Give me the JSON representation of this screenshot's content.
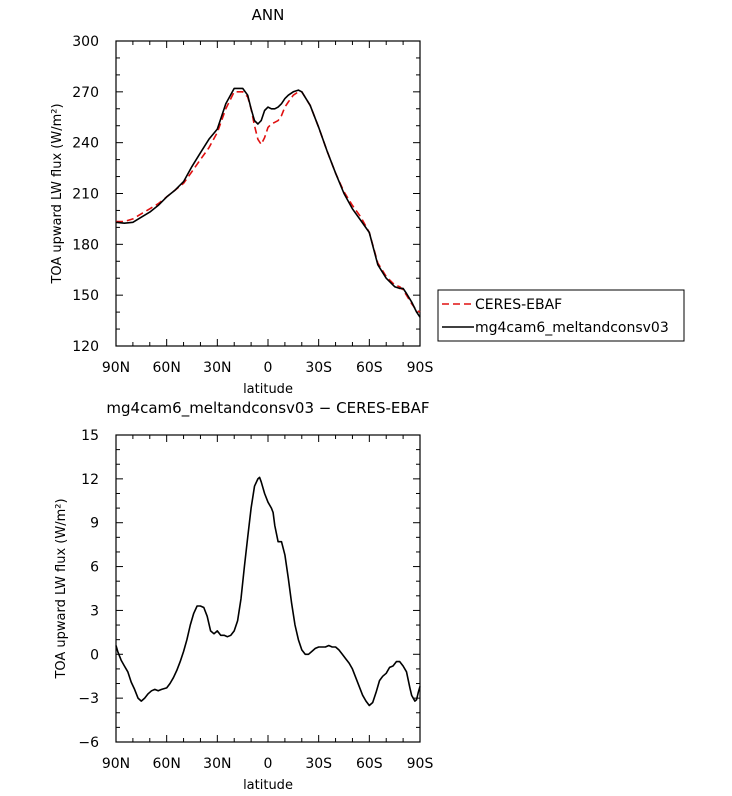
{
  "chart_data": [
    {
      "type": "line",
      "title": "ANN",
      "xlabel": "latitude",
      "ylabel": "TOA upward LW flux (W/m²)",
      "xlim": [
        90,
        -90
      ],
      "ylim": [
        120,
        300
      ],
      "xticks": [
        90,
        60,
        30,
        0,
        -30,
        -60,
        -90
      ],
      "xticklabels": [
        "90N",
        "60N",
        "30N",
        "0",
        "30S",
        "60S",
        "90S"
      ],
      "yticks": [
        120,
        150,
        180,
        210,
        240,
        270,
        300
      ],
      "yticklabels": [
        "120",
        "150",
        "180",
        "210",
        "240",
        "270",
        "300"
      ],
      "legend_position": "right",
      "series": [
        {
          "name": "CERES-EBAF",
          "color": "#e01010",
          "style": "dashed",
          "x": [
            90,
            85,
            80,
            75,
            70,
            65,
            60,
            55,
            50,
            45,
            40,
            35,
            30,
            25,
            20,
            15,
            12,
            10,
            8,
            6,
            4,
            2,
            0,
            -2,
            -4,
            -6,
            -8,
            -10,
            -12,
            -15,
            -18,
            -20,
            -25,
            -30,
            -35,
            -40,
            -45,
            -50,
            -55,
            -60,
            -65,
            -70,
            -75,
            -78,
            -80,
            -82,
            -85,
            -88,
            -90
          ],
          "y": [
            193.5,
            193.5,
            195,
            198,
            201,
            204,
            208,
            212,
            216,
            223,
            230,
            237,
            246,
            260,
            270,
            270,
            267,
            260,
            250,
            242,
            239,
            243,
            249,
            251,
            252,
            253,
            256,
            261,
            264,
            268,
            270,
            270,
            262,
            249,
            235,
            222,
            211,
            203,
            196,
            187,
            169,
            161,
            156,
            155,
            153,
            150,
            145,
            141,
            140
          ]
        },
        {
          "name": "mg4cam6_meltandconsv03",
          "color": "#000000",
          "style": "solid",
          "x": [
            90,
            85,
            80,
            75,
            70,
            65,
            60,
            55,
            50,
            45,
            40,
            35,
            30,
            25,
            20,
            15,
            12,
            10,
            8,
            6,
            4,
            2,
            0,
            -2,
            -4,
            -6,
            -8,
            -10,
            -12,
            -15,
            -18,
            -20,
            -25,
            -30,
            -35,
            -40,
            -45,
            -50,
            -55,
            -60,
            -65,
            -70,
            -75,
            -78,
            -80,
            -82,
            -85,
            -88,
            -90
          ],
          "y": [
            193,
            192.5,
            193,
            196,
            199,
            203,
            208,
            212,
            217,
            226,
            234,
            242,
            248,
            263,
            272,
            272,
            268,
            260,
            253,
            251,
            253,
            259,
            261,
            260,
            260,
            261,
            263,
            266,
            268,
            270,
            271,
            270,
            262,
            249,
            235,
            222,
            210,
            201,
            194,
            187,
            168,
            160,
            155,
            154,
            154,
            151,
            146,
            140,
            137
          ]
        }
      ]
    },
    {
      "type": "line",
      "title": "mg4cam6_meltandconsv03 − CERES-EBAF",
      "xlabel": "latitude",
      "ylabel": "TOA upward LW flux (W/m²)",
      "xlim": [
        90,
        -90
      ],
      "ylim": [
        -6,
        15
      ],
      "xticks": [
        90,
        60,
        30,
        0,
        -30,
        -60,
        -90
      ],
      "xticklabels": [
        "90N",
        "60N",
        "30N",
        "0",
        "30S",
        "60S",
        "90S"
      ],
      "yticks": [
        -6,
        -3,
        0,
        3,
        6,
        9,
        12,
        15
      ],
      "yticklabels": [
        "−6",
        "−3",
        "0",
        "3",
        "6",
        "9",
        "12",
        "15"
      ],
      "series": [
        {
          "color": "#000000",
          "style": "solid",
          "x": [
            90,
            89,
            87,
            85,
            83,
            81,
            79,
            77,
            75,
            73,
            71,
            69,
            67,
            65,
            63,
            60,
            58,
            56,
            54,
            52,
            50,
            48,
            46,
            44,
            42,
            40,
            38,
            36,
            34,
            32,
            30,
            28,
            26,
            24,
            22,
            20,
            18,
            16,
            14,
            12,
            10,
            8,
            6,
            5,
            4,
            2,
            0,
            -2,
            -3,
            -4,
            -6,
            -8,
            -10,
            -12,
            -14,
            -16,
            -18,
            -20,
            -22,
            -24,
            -26,
            -28,
            -30,
            -32,
            -34,
            -36,
            -38,
            -40,
            -42,
            -44,
            -46,
            -48,
            -50,
            -52,
            -54,
            -56,
            -58,
            -60,
            -62,
            -64,
            -66,
            -68,
            -70,
            -72,
            -74,
            -76,
            -78,
            -80,
            -82,
            -84,
            -85,
            -86,
            -87,
            -88,
            -89,
            -90
          ],
          "y": [
            0.6,
            0.2,
            -0.4,
            -0.8,
            -1.2,
            -1.9,
            -2.4,
            -3.0,
            -3.2,
            -3.0,
            -2.7,
            -2.5,
            -2.4,
            -2.5,
            -2.4,
            -2.3,
            -2.0,
            -1.6,
            -1.1,
            -0.5,
            0.2,
            1.0,
            2.0,
            2.8,
            3.3,
            3.3,
            3.2,
            2.6,
            1.6,
            1.4,
            1.6,
            1.3,
            1.3,
            1.2,
            1.3,
            1.6,
            2.3,
            3.8,
            6.0,
            8.0,
            10.0,
            11.5,
            12.0,
            12.1,
            11.8,
            11.0,
            10.4,
            10.0,
            9.7,
            8.8,
            7.7,
            7.7,
            6.8,
            5.2,
            3.5,
            2.0,
            1.0,
            0.3,
            0.0,
            0.0,
            0.2,
            0.4,
            0.5,
            0.5,
            0.5,
            0.6,
            0.5,
            0.5,
            0.3,
            0.0,
            -0.3,
            -0.6,
            -1.0,
            -1.6,
            -2.2,
            -2.8,
            -3.2,
            -3.5,
            -3.3,
            -2.6,
            -1.8,
            -1.5,
            -1.3,
            -0.9,
            -0.8,
            -0.5,
            -0.5,
            -0.8,
            -1.2,
            -2.3,
            -2.8,
            -3.0,
            -3.2,
            -3.1,
            -2.6,
            -2.2
          ]
        }
      ]
    }
  ]
}
